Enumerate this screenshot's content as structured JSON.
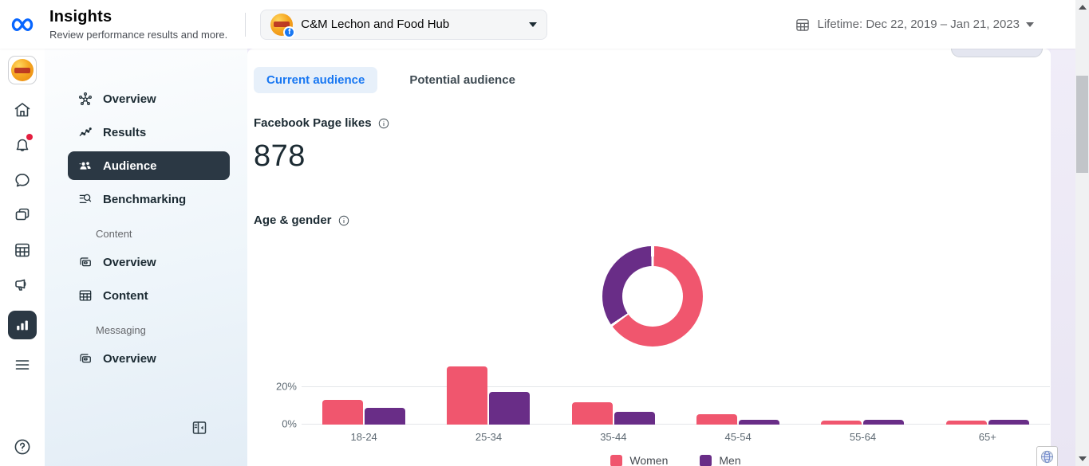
{
  "header": {
    "title": "Insights",
    "subtitle": "Review performance results and more.",
    "page_selector": {
      "label": "C&M Lechon and Food Hub",
      "badge": "facebook"
    },
    "date_range": {
      "label": "Lifetime: Dec 22, 2019 – Jan 21, 2023"
    }
  },
  "rail": {
    "items": [
      "business-avatar",
      "home",
      "notifications",
      "inbox",
      "content",
      "planner",
      "ads",
      "insights",
      "all-tools",
      "help"
    ],
    "notification_badge_color": "#e41e3f",
    "active_item": "insights"
  },
  "sidebar": {
    "primary": [
      {
        "label": "Overview"
      },
      {
        "label": "Results"
      },
      {
        "label": "Audience"
      },
      {
        "label": "Benchmarking"
      }
    ],
    "sections": [
      {
        "label": "Content",
        "items": [
          {
            "label": "Overview"
          },
          {
            "label": "Content"
          }
        ]
      },
      {
        "label": "Messaging",
        "items": [
          {
            "label": "Overview"
          }
        ]
      }
    ],
    "active_item": "Audience"
  },
  "main": {
    "tabs": [
      {
        "label": "Current audience",
        "active": true
      },
      {
        "label": "Potential audience",
        "active": false
      }
    ],
    "page_likes": {
      "label": "Facebook Page likes",
      "value": "878"
    },
    "age_gender_label": "Age & gender"
  },
  "chart_data": [
    {
      "type": "pie",
      "donut": true,
      "title": "Age & gender — gender split",
      "labels": [
        "Women",
        "Men"
      ],
      "values": [
        65,
        35
      ],
      "colors": [
        "#f0566e",
        "#692d87"
      ],
      "legend_position": "shared-bottom"
    },
    {
      "type": "bar",
      "title": "Age & gender — by age bracket",
      "categories": [
        "18-24",
        "25-34",
        "35-44",
        "45-54",
        "55-64",
        "65+"
      ],
      "series": [
        {
          "name": "Women",
          "color": "#f0566e",
          "values": [
            13,
            31,
            12,
            5.5,
            2.2,
            2.1
          ]
        },
        {
          "name": "Men",
          "color": "#692d87",
          "values": [
            9,
            17.5,
            7,
            2.5,
            2.4,
            2.5
          ]
        }
      ],
      "yticks": [
        {
          "label": "0%",
          "value": 0
        },
        {
          "label": "20%",
          "value": 20
        }
      ],
      "ylim": [
        0,
        32
      ],
      "grid": true,
      "legend_position": "bottom",
      "xlabel": "",
      "ylabel": ""
    }
  ],
  "colors": {
    "accent_blue": "#1877f2",
    "selected_dark": "#2b3844",
    "women": "#f0566e",
    "men": "#692d87"
  }
}
